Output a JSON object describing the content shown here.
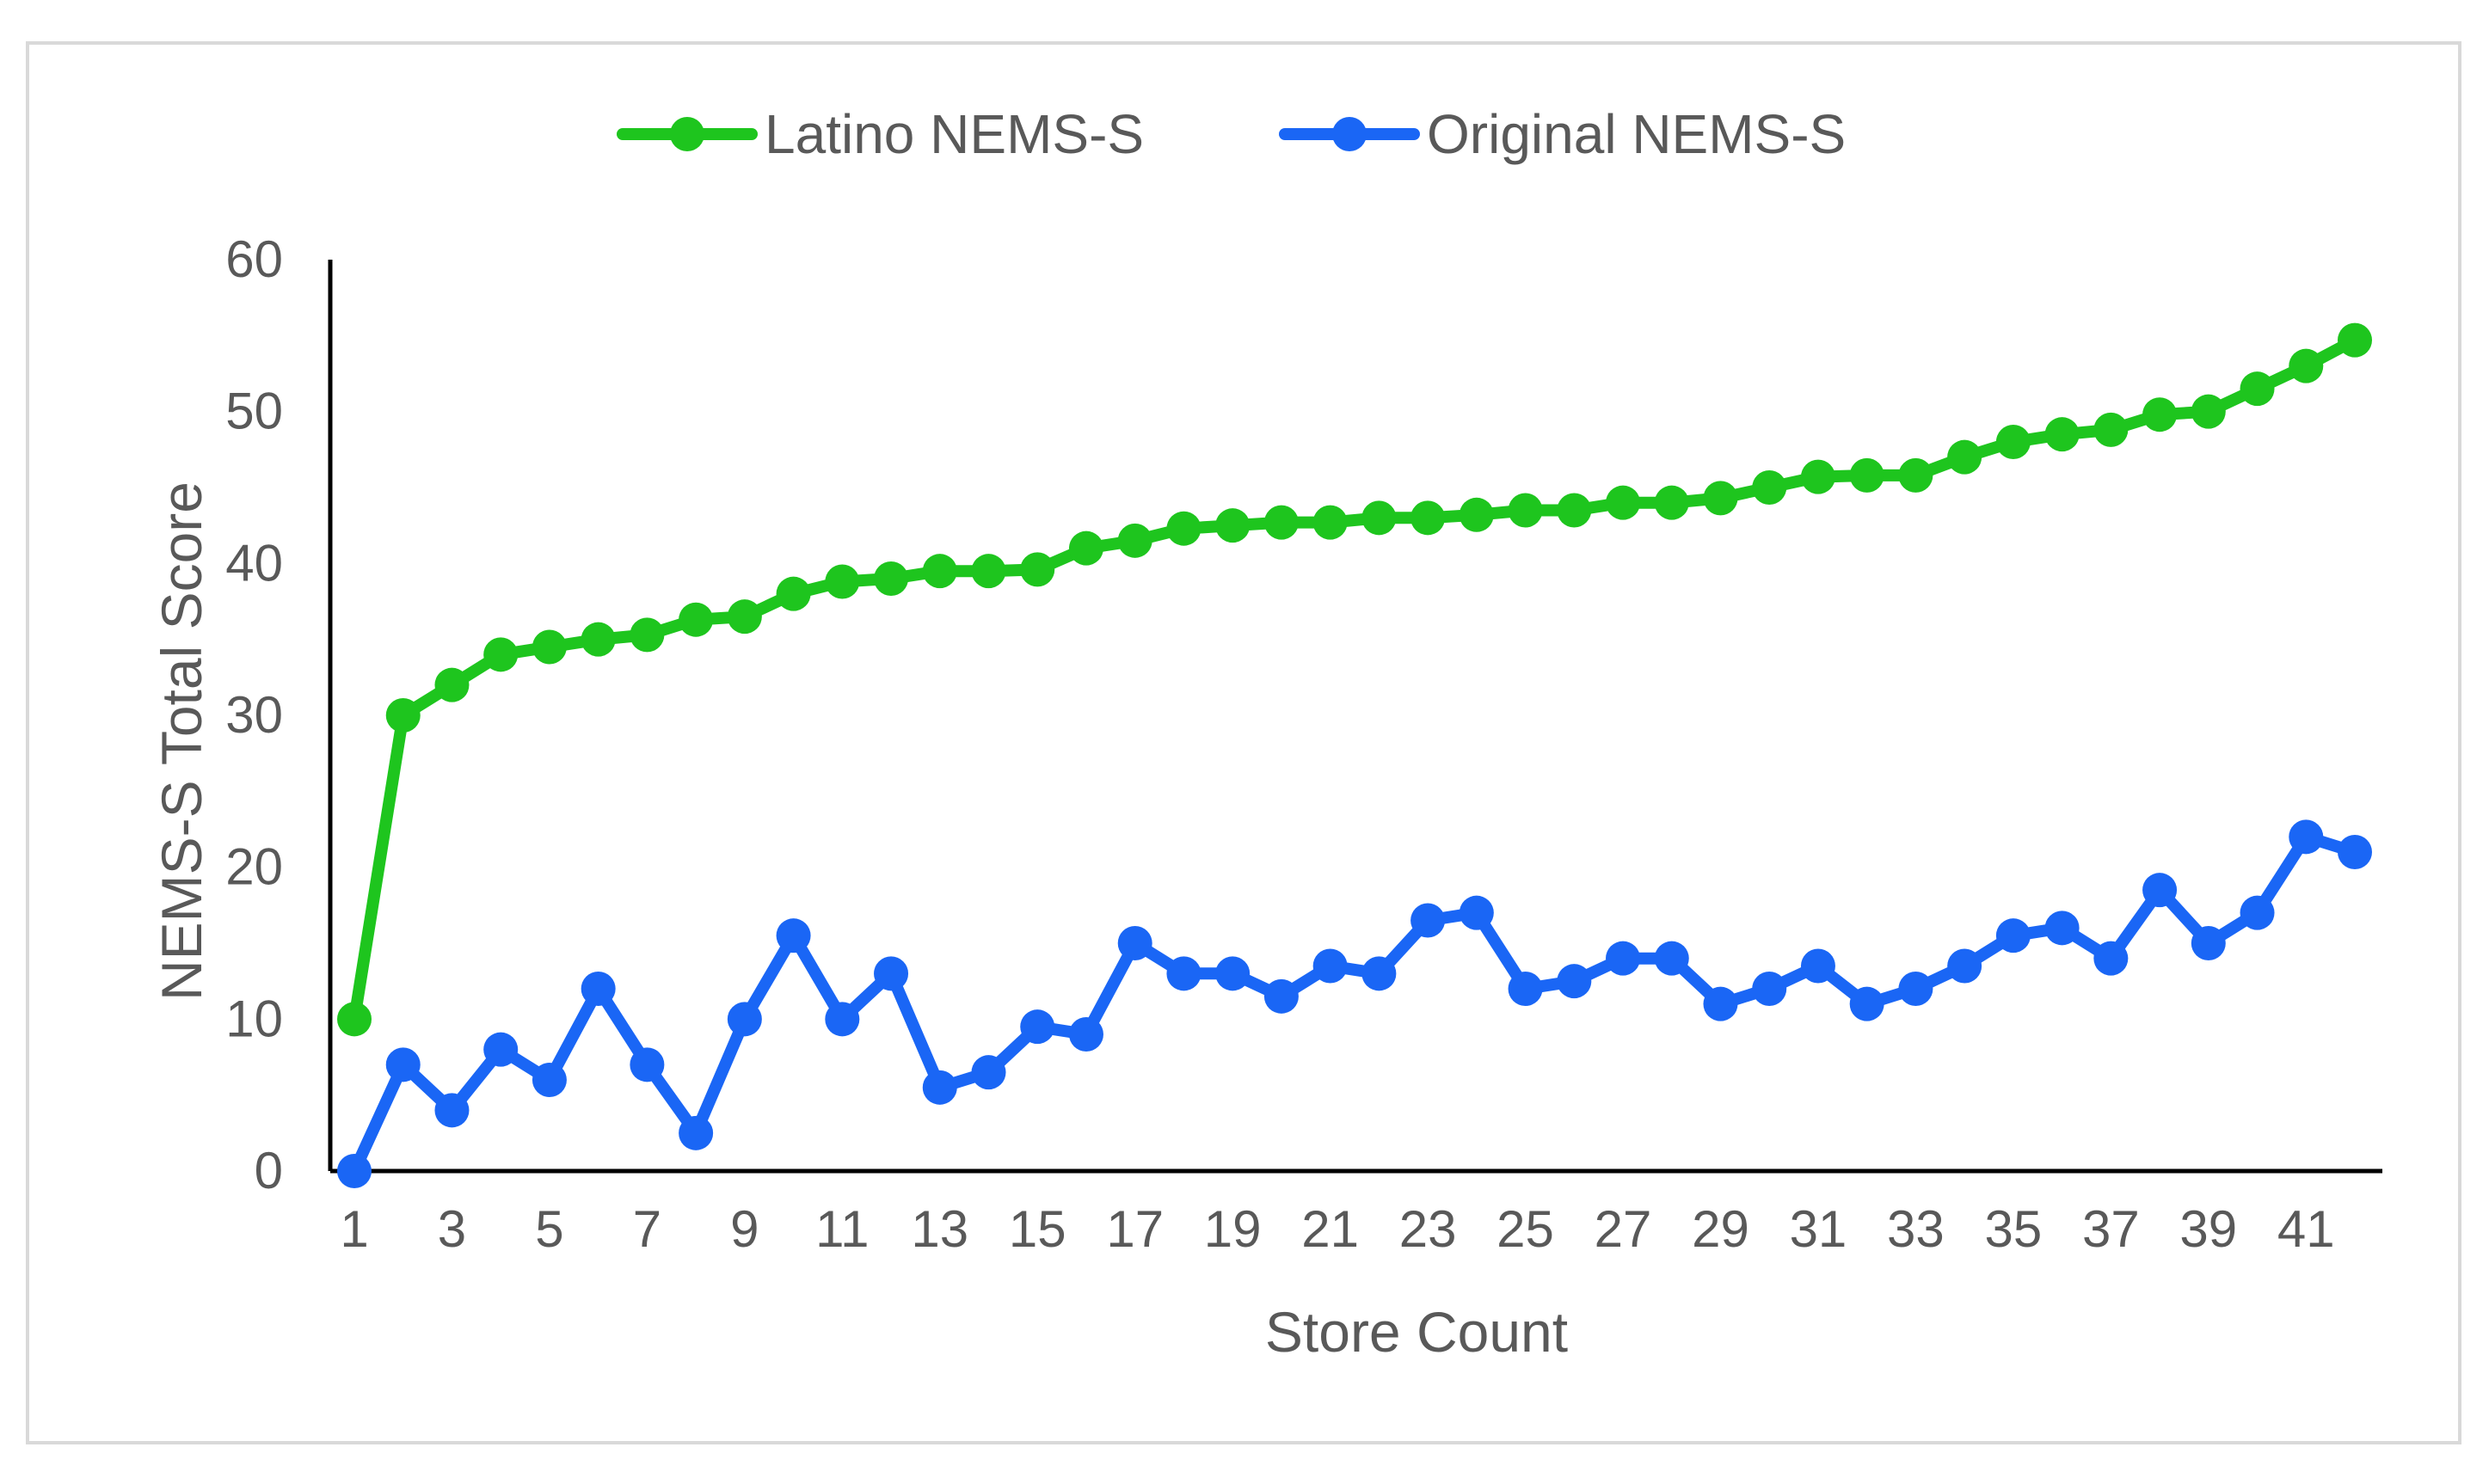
{
  "chart_data": {
    "type": "line",
    "title": "",
    "xlabel": "Store Count",
    "ylabel": "NEMS-S Total Score",
    "ylim": [
      0,
      60
    ],
    "yticks": [
      0,
      10,
      20,
      30,
      40,
      50,
      60
    ],
    "x": [
      1,
      2,
      3,
      4,
      5,
      6,
      7,
      8,
      9,
      10,
      11,
      12,
      13,
      14,
      15,
      16,
      17,
      18,
      19,
      20,
      21,
      22,
      23,
      24,
      25,
      26,
      27,
      28,
      29,
      30,
      31,
      32,
      33,
      34,
      35,
      36,
      37,
      38,
      39,
      40,
      41,
      42
    ],
    "xtick_labels": [
      "1",
      "3",
      "5",
      "7",
      "9",
      "11",
      "13",
      "15",
      "17",
      "19",
      "21",
      "23",
      "25",
      "27",
      "29",
      "31",
      "33",
      "35",
      "37",
      "39",
      "41"
    ],
    "legend_position": "top",
    "grid": false,
    "series": [
      {
        "name": "Latino NEMS-S",
        "color": "#1ec51e",
        "values": [
          10,
          30,
          32,
          34,
          34.5,
          35,
          35.3,
          36.3,
          36.5,
          38,
          38.8,
          39,
          39.5,
          39.5,
          39.6,
          41,
          41.5,
          42.3,
          42.5,
          42.7,
          42.7,
          43,
          43,
          43.2,
          43.5,
          43.5,
          44,
          44,
          44.3,
          45,
          45.7,
          45.8,
          45.8,
          47,
          48,
          48.5,
          48.8,
          49.8,
          50,
          51.5,
          53,
          54.7
        ]
      },
      {
        "name": "Original NEMS-S",
        "color": "#1a66f5",
        "values": [
          0,
          7,
          4,
          8,
          6,
          12,
          7,
          2.5,
          10,
          15.5,
          10,
          13,
          5.5,
          6.5,
          9.5,
          9,
          15,
          13,
          13,
          11.5,
          13.5,
          13,
          16.5,
          17,
          12,
          12.5,
          14,
          14,
          11,
          12,
          13.5,
          11,
          12,
          13.5,
          15.5,
          16,
          14,
          18.5,
          15,
          17,
          22,
          21
        ]
      }
    ]
  }
}
